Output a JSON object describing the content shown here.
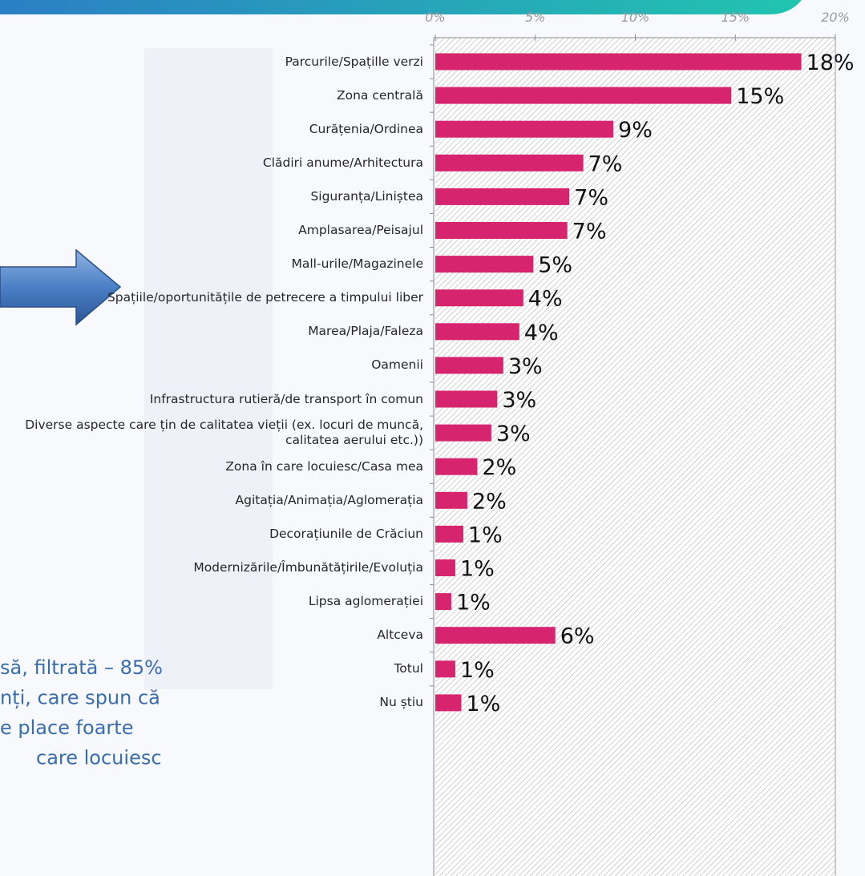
{
  "chart_data": {
    "type": "barh",
    "categories": [
      "Parcurile/Spațille verzi",
      "Zona centrală",
      "Curățenia/Ordinea",
      "Clădiri anume/Arhitectura",
      "Siguranța/Liniștea",
      "Amplasarea/Peisajul",
      "Mall-urile/Magazinele",
      "Spațiile/oportunitățile de petrecere a timpului liber",
      "Marea/Plaja/Faleza",
      "Oamenii",
      "Infrastructura rutieră/de transport în comun",
      "Diverse aspecte care țin de calitatea vieții (ex. locuri de muncă, calitatea aerului etc.))",
      "Zona în care locuiesc/Casa mea",
      "Agitația/Animația/Aglomerația",
      "Decorațiunile de Crăciun",
      "Modernizările/Îmbunătățirile/Evoluția",
      "Lipsa aglomerației",
      "Altceva",
      "Totul",
      "Nu știu"
    ],
    "values": [
      18.3,
      14.8,
      8.9,
      7.4,
      6.7,
      6.6,
      4.9,
      4.4,
      4.2,
      3.4,
      3.1,
      2.8,
      2.1,
      1.6,
      1.4,
      1.0,
      0.8,
      6.0,
      1.0,
      1.3
    ],
    "value_labels": [
      "18%",
      "15%",
      "9%",
      "7%",
      "7%",
      "7%",
      "5%",
      "4%",
      "4%",
      "3%",
      "3%",
      "3%",
      "2%",
      "2%",
      "1%",
      "1%",
      "1%",
      "6%",
      "1%",
      "1%"
    ],
    "color": "#d6246e",
    "xlim": [
      0,
      20
    ],
    "xticks": [
      {
        "value": 0,
        "label": "0%"
      },
      {
        "value": 5,
        "label": "5%"
      },
      {
        "value": 10,
        "label": "10%"
      },
      {
        "value": 15,
        "label": "15%"
      },
      {
        "value": 20,
        "label": "20%"
      }
    ],
    "annotations": [
      "să, filtrată – 85%",
      "nți, care spun că",
      "e place foarte",
      "care locuiesc"
    ]
  }
}
